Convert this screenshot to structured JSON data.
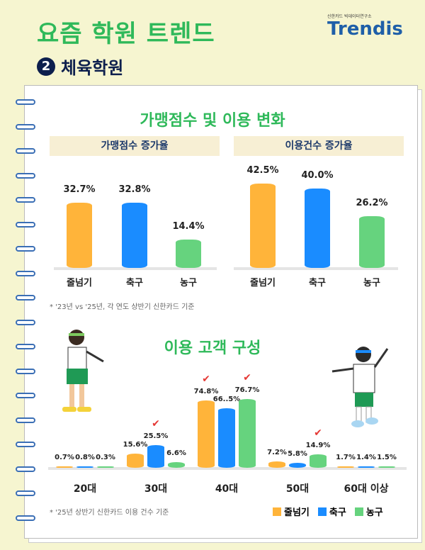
{
  "header": {
    "title": "요즘 학원 트렌드",
    "section_number": "2",
    "section_title": "체육학원",
    "logo_small": "신한카드 빅데이터연구소",
    "logo": "Trendis"
  },
  "colors": {
    "jump_rope": "#ffb43a",
    "soccer": "#1a8cff",
    "basketball": "#66d37e",
    "title_green": "#2fb95a",
    "navy": "#0d1f4d"
  },
  "top": {
    "title": "가맹점수 및 이용 변화",
    "footnote": "* '23년 vs '25년, 각 연도 상반기 신한카드 기준"
  },
  "bottom": {
    "title": "이용 고객 구성",
    "footnote": "* '25년 상반기 신한카드 이용 건수 기준"
  },
  "legend": [
    "줄넘기",
    "축구",
    "농구"
  ],
  "chart_data": [
    {
      "type": "bar",
      "title": "가맹점수 증가율",
      "categories": [
        "줄넘기",
        "축구",
        "농구"
      ],
      "values": [
        32.7,
        32.8,
        14.4
      ],
      "labels": [
        "32.7%",
        "32.8%",
        "14.4%"
      ],
      "unit": "%"
    },
    {
      "type": "bar",
      "title": "이용건수 증가율",
      "categories": [
        "줄넘기",
        "축구",
        "농구"
      ],
      "values": [
        42.5,
        40.0,
        26.2
      ],
      "labels": [
        "42.5%",
        "40.0%",
        "26.2%"
      ],
      "unit": "%"
    },
    {
      "type": "bar",
      "title": "이용 고객 구성",
      "categories": [
        "20대",
        "30대",
        "40대",
        "50대",
        "60대 이상"
      ],
      "series": [
        {
          "name": "줄넘기",
          "values": [
            0.7,
            15.6,
            74.8,
            7.2,
            1.7
          ],
          "labels": [
            "0.7%",
            "15.6%",
            "74.8%",
            "7.2%",
            "1.7%"
          ]
        },
        {
          "name": "축구",
          "values": [
            0.8,
            25.5,
            66.5,
            5.8,
            1.4
          ],
          "labels": [
            "0.8%",
            "25.5%",
            "66..5%",
            "5.8%",
            "1.4%"
          ]
        },
        {
          "name": "농구",
          "values": [
            0.3,
            6.6,
            76.7,
            14.9,
            1.5
          ],
          "labels": [
            "0.3%",
            "6.6%",
            "76.7%",
            "14.9%",
            "1.5%"
          ]
        }
      ],
      "highlighted": [
        [
          1,
          1
        ],
        [
          2,
          0
        ],
        [
          2,
          2
        ],
        [
          3,
          2
        ]
      ],
      "unit": "%"
    }
  ]
}
